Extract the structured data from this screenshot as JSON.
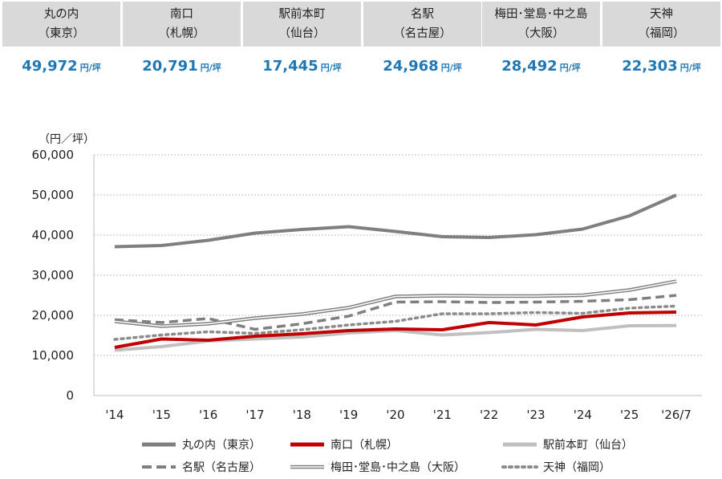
{
  "cards": [
    {
      "name_line1": "丸の内",
      "name_line2": "（東京）",
      "value": "49,972",
      "unit": "円/坪"
    },
    {
      "name_line1": "南口",
      "name_line2": "（札幌）",
      "value": "20,791",
      "unit": "円/坪"
    },
    {
      "name_line1": "駅前本町",
      "name_line2": "（仙台）",
      "value": "17,445",
      "unit": "円/坪"
    },
    {
      "name_line1": "名駅",
      "name_line2": "（名古屋）",
      "value": "24,968",
      "unit": "円/坪"
    },
    {
      "name_line1": "梅田･堂島･中之島",
      "name_line2": "（大阪）",
      "value": "28,492",
      "unit": "円/坪"
    },
    {
      "name_line1": "天神",
      "name_line2": "（福岡）",
      "value": "22,303",
      "unit": "円/坪"
    }
  ],
  "chart_data": {
    "type": "line",
    "ylabel": "（円／坪）",
    "ylim": [
      0,
      60000
    ],
    "yticks": [
      "0",
      "10,000",
      "20,000",
      "30,000",
      "40,000",
      "50,000",
      "60,000"
    ],
    "categories": [
      "'14",
      "'15",
      "'16",
      "'17",
      "'18",
      "'19",
      "'20",
      "'21",
      "'22",
      "'23",
      "'24",
      "'25",
      "'26/7"
    ],
    "grid": true,
    "legend_position": "bottom",
    "series": [
      {
        "name": "丸の内（東京）",
        "color": "#7f7f7f",
        "style": "solid-thick",
        "values": [
          37100,
          37400,
          38700,
          40500,
          41400,
          42100,
          40900,
          39600,
          39400,
          40100,
          41500,
          44800,
          49972
        ]
      },
      {
        "name": "南口（札幌）",
        "color": "#c00000",
        "style": "solid-thick",
        "values": [
          12000,
          14100,
          13800,
          14800,
          15400,
          16200,
          16600,
          16400,
          18200,
          17600,
          19600,
          20600,
          20791
        ]
      },
      {
        "name": "駅前本町（仙台）",
        "color": "#c0c0c0",
        "style": "solid-thick",
        "values": [
          11300,
          12200,
          13600,
          14100,
          14600,
          15600,
          16200,
          15100,
          15700,
          16500,
          16200,
          17400,
          17445
        ]
      },
      {
        "name": "名駅（名古屋）",
        "color": "#7f7f7f",
        "style": "dashed",
        "values": [
          18900,
          18200,
          19200,
          16500,
          17900,
          19800,
          23300,
          23400,
          23200,
          23300,
          23500,
          23900,
          24968
        ]
      },
      {
        "name": "梅田･堂島･中之島（大阪）",
        "color": "#808080",
        "style": "double",
        "values": [
          18500,
          17300,
          17900,
          19300,
          20300,
          21900,
          24700,
          24900,
          24800,
          24800,
          25000,
          26300,
          28492
        ]
      },
      {
        "name": "天神（福岡）",
        "color": "#8c8c8c",
        "style": "dotted",
        "values": [
          14000,
          15100,
          15900,
          15500,
          16400,
          17600,
          18500,
          20400,
          20400,
          20700,
          20500,
          21800,
          22303
        ]
      }
    ]
  }
}
